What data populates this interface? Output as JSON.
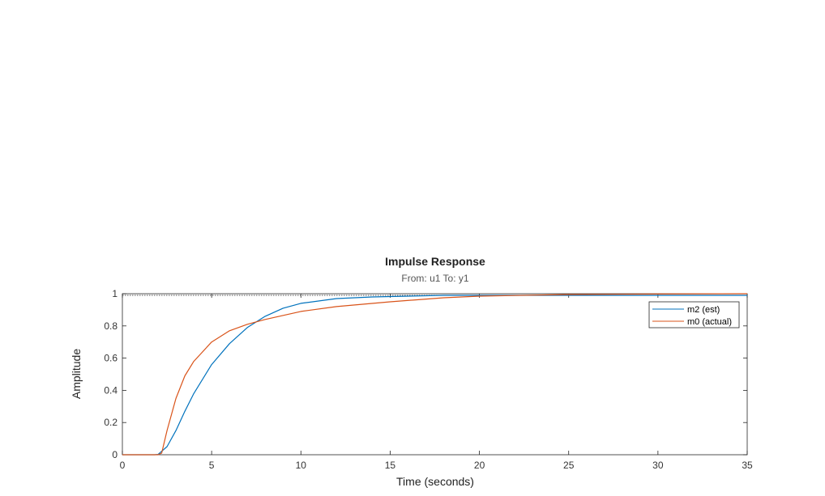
{
  "chart_data": {
    "type": "line",
    "title": "Impulse Response",
    "subtitle": "From: u1  To: y1",
    "xlabel": "Time (seconds)",
    "ylabel": "Amplitude",
    "xlim": [
      0,
      35
    ],
    "ylim": [
      0,
      1
    ],
    "xticks": [
      "0",
      "5",
      "10",
      "15",
      "20",
      "25",
      "30",
      "35"
    ],
    "yticks": [
      "0",
      "0.2",
      "0.4",
      "0.6",
      "0.8",
      "1"
    ],
    "grid": false,
    "legend_position": "top-right",
    "steady_state_line": 0.99,
    "series": [
      {
        "name": "m2 (est)",
        "color": "#0072BD",
        "x": [
          0,
          1.8,
          2.0,
          2.5,
          3,
          3.5,
          4,
          5,
          6,
          7,
          8,
          9,
          10,
          12,
          14,
          16,
          18,
          20,
          25,
          30,
          35
        ],
        "y": [
          0,
          0,
          0.002,
          0.05,
          0.15,
          0.27,
          0.38,
          0.56,
          0.69,
          0.79,
          0.86,
          0.91,
          0.94,
          0.97,
          0.98,
          0.985,
          0.99,
          0.99,
          0.99,
          0.99,
          0.99
        ]
      },
      {
        "name": "m0 (actual)",
        "color": "#D95319",
        "x": [
          0,
          2.0,
          2.2,
          2.5,
          3,
          3.5,
          4,
          5,
          6,
          7,
          8,
          10,
          12,
          15,
          18,
          20,
          25,
          30,
          35
        ],
        "y": [
          0,
          0,
          0.01,
          0.15,
          0.35,
          0.49,
          0.58,
          0.7,
          0.77,
          0.81,
          0.84,
          0.89,
          0.92,
          0.95,
          0.975,
          0.985,
          0.995,
          0.998,
          1.0
        ]
      }
    ]
  }
}
